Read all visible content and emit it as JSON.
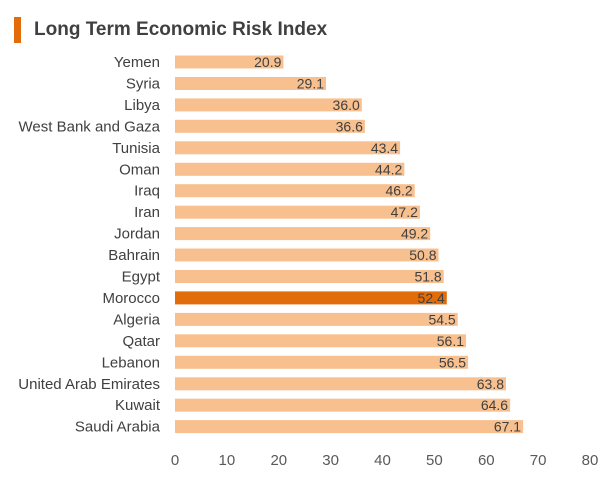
{
  "colors": {
    "bar": "#f8c08f",
    "highlight": "#e36c0a",
    "text": "#404040",
    "accent": "#e36c0a"
  },
  "chart_data": {
    "type": "bar",
    "orientation": "horizontal",
    "title": "Long Term Economic Risk Index",
    "categories": [
      "Yemen",
      "Syria",
      "Libya",
      "West Bank and Gaza",
      "Tunisia",
      "Oman",
      "Iraq",
      "Iran",
      "Jordan",
      "Bahrain",
      "Egypt",
      "Morocco",
      "Algeria",
      "Qatar",
      "Lebanon",
      "United Arab Emirates",
      "Kuwait",
      "Saudi Arabia"
    ],
    "values": [
      20.9,
      29.1,
      36.0,
      36.6,
      43.4,
      44.2,
      46.2,
      47.2,
      49.2,
      50.8,
      51.8,
      52.4,
      54.5,
      56.1,
      56.5,
      63.8,
      64.6,
      67.1
    ],
    "value_labels": [
      "20.9",
      "29.1",
      "36.0",
      "36.6",
      "43.4",
      "44.2",
      "46.2",
      "47.2",
      "49.2",
      "50.8",
      "51.8",
      "52.4",
      "54.5",
      "56.1",
      "56.5",
      "63.8",
      "64.6",
      "67.1"
    ],
    "highlight": "Morocco",
    "xlim": [
      0,
      80
    ],
    "xticks": [
      "0",
      "10",
      "20",
      "30",
      "40",
      "50",
      "60",
      "70",
      "80"
    ],
    "xlabel": "",
    "ylabel": "",
    "grid": false,
    "legend": "none"
  }
}
